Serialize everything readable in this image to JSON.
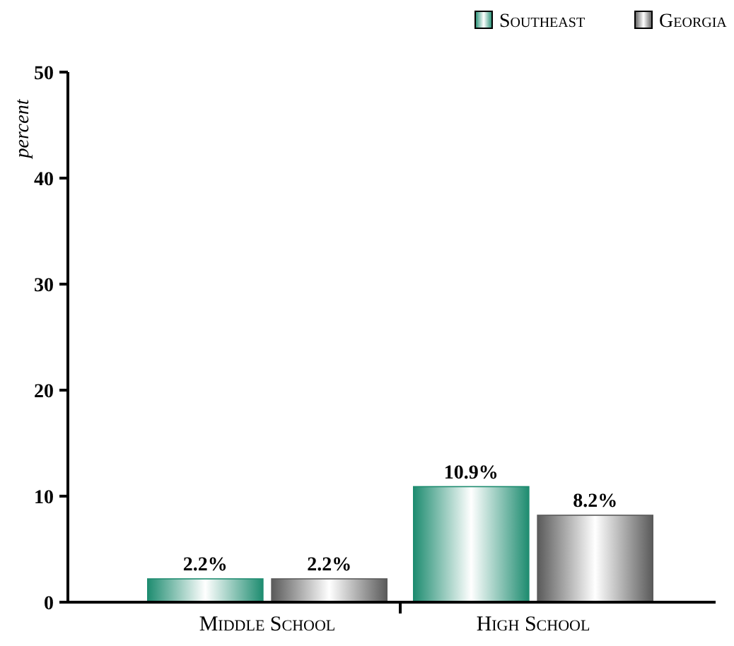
{
  "chart_data": {
    "type": "bar",
    "ylabel": "percent",
    "categories": [
      "Middle School",
      "High School"
    ],
    "series": [
      {
        "name": "Southeast",
        "color": "#1e8c70",
        "values": [
          2.2,
          10.9
        ],
        "value_labels": [
          "2.2%",
          "10.9%"
        ]
      },
      {
        "name": "Georgia",
        "color": "#5a5a5a",
        "values": [
          2.2,
          8.2
        ],
        "value_labels": [
          "2.2%",
          "8.2%"
        ]
      }
    ],
    "ylim": [
      0,
      50
    ],
    "yticks": [
      0,
      10,
      20,
      30,
      40,
      50
    ],
    "grid": false,
    "legend": "top right"
  }
}
